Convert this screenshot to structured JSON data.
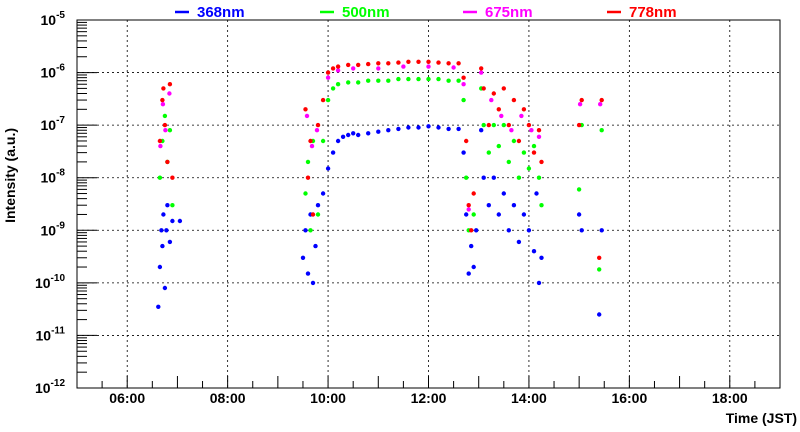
{
  "chart_data": {
    "type": "scatter",
    "title": "",
    "xlabel": "Time (JST)",
    "ylabel": "Intensity (a.u.)",
    "xlim": [
      5,
      19
    ],
    "ylim": [
      1e-12,
      1e-05
    ],
    "yscale": "log",
    "grid": true,
    "legend_placement": "top",
    "x_tick_labels": [
      {
        "value": 6,
        "label": "06:00"
      },
      {
        "value": 8,
        "label": "08:00"
      },
      {
        "value": 10,
        "label": "10:00"
      },
      {
        "value": 12,
        "label": "12:00"
      },
      {
        "value": 14,
        "label": "14:00"
      },
      {
        "value": 16,
        "label": "16:00"
      },
      {
        "value": 18,
        "label": "18:00"
      }
    ],
    "y_tick_exponents": [
      -5,
      -6,
      -7,
      -8,
      -9,
      -10,
      -11,
      -12
    ],
    "y_tick_base": "10",
    "series": [
      {
        "name": "368nm",
        "color": "#0000ff",
        "t": [
          6.62,
          6.65,
          6.68,
          6.7,
          6.72,
          6.75,
          6.78,
          6.8,
          6.85,
          6.9,
          7.05,
          9.5,
          9.55,
          9.6,
          9.65,
          9.7,
          9.75,
          9.8,
          9.9,
          10.0,
          10.1,
          10.2,
          10.3,
          10.4,
          10.5,
          10.6,
          10.8,
          11.0,
          11.2,
          11.4,
          11.6,
          11.8,
          12.0,
          12.2,
          12.4,
          12.6,
          12.7,
          12.75,
          12.8,
          12.85,
          12.9,
          12.95,
          13.05,
          13.1,
          13.2,
          13.3,
          13.4,
          13.5,
          13.6,
          13.7,
          13.8,
          13.9,
          14.0,
          14.1,
          14.15,
          14.2,
          14.25,
          15.0,
          15.05,
          15.4,
          15.45
        ],
        "v": [
          3.5e-11,
          2e-10,
          1e-09,
          5e-10,
          2e-09,
          8e-11,
          1e-09,
          3e-09,
          6e-10,
          1.5e-09,
          1.5e-09,
          3e-10,
          1e-09,
          1.5e-10,
          2e-09,
          1e-10,
          5e-10,
          3e-09,
          5e-09,
          1.5e-08,
          3e-08,
          5e-08,
          6e-08,
          6.5e-08,
          7e-08,
          6.5e-08,
          7e-08,
          7.5e-08,
          8e-08,
          8.5e-08,
          9e-08,
          9e-08,
          9.5e-08,
          9e-08,
          8.5e-08,
          8.5e-08,
          3e-08,
          2e-09,
          1.5e-10,
          5e-10,
          2e-10,
          1e-09,
          8e-08,
          1e-08,
          3e-09,
          1e-08,
          2e-09,
          5e-09,
          1e-09,
          3e-09,
          6e-10,
          2e-09,
          1e-09,
          4e-10,
          5e-09,
          1e-10,
          3e-10,
          2e-09,
          1e-09,
          2.5e-11,
          1e-09
        ]
      },
      {
        "name": "500nm",
        "color": "#00ff00",
        "t": [
          6.65,
          6.7,
          6.75,
          6.8,
          6.85,
          6.9,
          9.55,
          9.6,
          9.65,
          9.7,
          9.8,
          9.9,
          10.0,
          10.1,
          10.2,
          10.4,
          10.6,
          10.8,
          11.0,
          11.2,
          11.4,
          11.6,
          11.8,
          12.0,
          12.2,
          12.4,
          12.6,
          12.7,
          12.75,
          12.8,
          12.9,
          13.05,
          13.1,
          13.2,
          13.3,
          13.4,
          13.5,
          13.6,
          13.7,
          13.8,
          13.9,
          14.0,
          14.1,
          14.2,
          14.25,
          15.0,
          15.05,
          15.4,
          15.45
        ],
        "v": [
          1e-08,
          5e-08,
          1.5e-07,
          2e-08,
          8e-08,
          3e-09,
          5e-09,
          2e-08,
          1e-09,
          5e-08,
          2e-09,
          5e-08,
          3e-07,
          5e-07,
          6e-07,
          6.5e-07,
          6.5e-07,
          7e-07,
          7e-07,
          7e-07,
          7.5e-07,
          7.5e-07,
          7.5e-07,
          7.5e-07,
          7.5e-07,
          7e-07,
          7e-07,
          3e-07,
          1e-08,
          1e-09,
          2e-09,
          5e-07,
          1e-07,
          3e-08,
          1e-07,
          4e-08,
          1e-07,
          2e-08,
          5e-08,
          1e-08,
          3e-08,
          1.5e-08,
          4e-08,
          1e-08,
          3e-09,
          6e-09,
          1e-07,
          1.8e-10,
          8e-08
        ]
      },
      {
        "name": "675nm",
        "color": "#ff00ff",
        "t": [
          6.66,
          6.71,
          6.76,
          6.84,
          9.58,
          9.68,
          9.78,
          10.0,
          10.2,
          10.5,
          11.0,
          11.5,
          12.0,
          12.5,
          12.7,
          12.8,
          13.05,
          13.25,
          13.45,
          13.65,
          13.85,
          14.05,
          14.2,
          15.02,
          15.42
        ],
        "v": [
          4e-08,
          2.5e-07,
          8e-08,
          4e-07,
          1.5e-07,
          4e-08,
          8e-08,
          8e-07,
          1.1e-06,
          1.2e-06,
          1.2e-06,
          1.3e-06,
          1.3e-06,
          1.25e-06,
          6e-07,
          2.5e-09,
          1e-06,
          3e-07,
          1.5e-07,
          8e-08,
          1.5e-07,
          8e-08,
          6e-08,
          2.5e-07,
          2.5e-07
        ]
      },
      {
        "name": "778nm",
        "color": "#ff0000",
        "t": [
          6.65,
          6.7,
          6.72,
          6.75,
          6.8,
          6.85,
          6.9,
          9.55,
          9.6,
          9.65,
          9.7,
          9.8,
          9.9,
          10.0,
          10.1,
          10.2,
          10.4,
          10.6,
          10.8,
          11.0,
          11.2,
          11.4,
          11.6,
          11.8,
          12.0,
          12.2,
          12.4,
          12.6,
          12.7,
          12.75,
          12.8,
          12.85,
          12.9,
          13.05,
          13.1,
          13.2,
          13.3,
          13.4,
          13.5,
          13.6,
          13.7,
          13.8,
          13.9,
          14.0,
          14.1,
          14.2,
          14.25,
          15.0,
          15.05,
          15.4,
          15.45
        ],
        "v": [
          5e-08,
          3e-07,
          5e-07,
          1e-07,
          2e-08,
          6e-07,
          1e-08,
          2e-07,
          1e-08,
          5e-08,
          2e-09,
          1e-07,
          3e-07,
          1e-06,
          1.2e-06,
          1.3e-06,
          1.4e-06,
          1.4e-06,
          1.45e-06,
          1.5e-06,
          1.5e-06,
          1.55e-06,
          1.6e-06,
          1.6e-06,
          1.6e-06,
          1.55e-06,
          1.5e-06,
          1.5e-06,
          8e-07,
          5e-08,
          3e-09,
          1e-09,
          5e-09,
          1.2e-06,
          5e-07,
          1e-07,
          4e-07,
          2e-07,
          5e-07,
          1e-07,
          3e-07,
          5e-08,
          2e-07,
          1e-07,
          3e-08,
          8e-08,
          2e-08,
          1e-07,
          3e-07,
          3e-10,
          3e-07
        ]
      }
    ]
  }
}
